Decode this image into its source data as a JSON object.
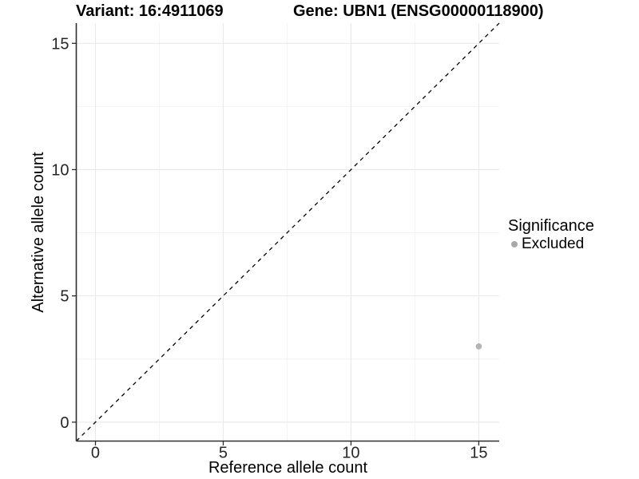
{
  "chart_data": {
    "type": "scatter",
    "title_left": "Variant: 16:4911069",
    "title_right": "Gene: UBN1 (ENSG00000118900)",
    "xlabel": "Reference allele count",
    "ylabel": "Alternative allele count",
    "xlim": [
      -0.75,
      15.8
    ],
    "ylim": [
      -0.75,
      15.8
    ],
    "xticks": [
      0,
      5,
      10,
      15
    ],
    "yticks": [
      0,
      5,
      10,
      15
    ],
    "minor_ticks": [
      2.5,
      7.5,
      12.5
    ],
    "grid": true,
    "legend_position": "right",
    "identity_line": {
      "style": "dashed",
      "slope": 1,
      "intercept": 0,
      "color": "#000000"
    },
    "points": [
      {
        "x": 15,
        "y": 3,
        "series": "Excluded",
        "color": "#b5b5b5",
        "radius": 3.5
      }
    ],
    "legend": {
      "title": "Significance",
      "items": [
        {
          "label": "Excluded",
          "marker": "circle",
          "color": "#a8a8a8"
        }
      ]
    },
    "colors": {
      "background": "#ffffff",
      "axis_line": "#2d2d2d",
      "tick_label": "#262626",
      "grid_major": "#e9e9e9",
      "grid_minor": "#f3f3f3",
      "title": "#000000"
    }
  }
}
